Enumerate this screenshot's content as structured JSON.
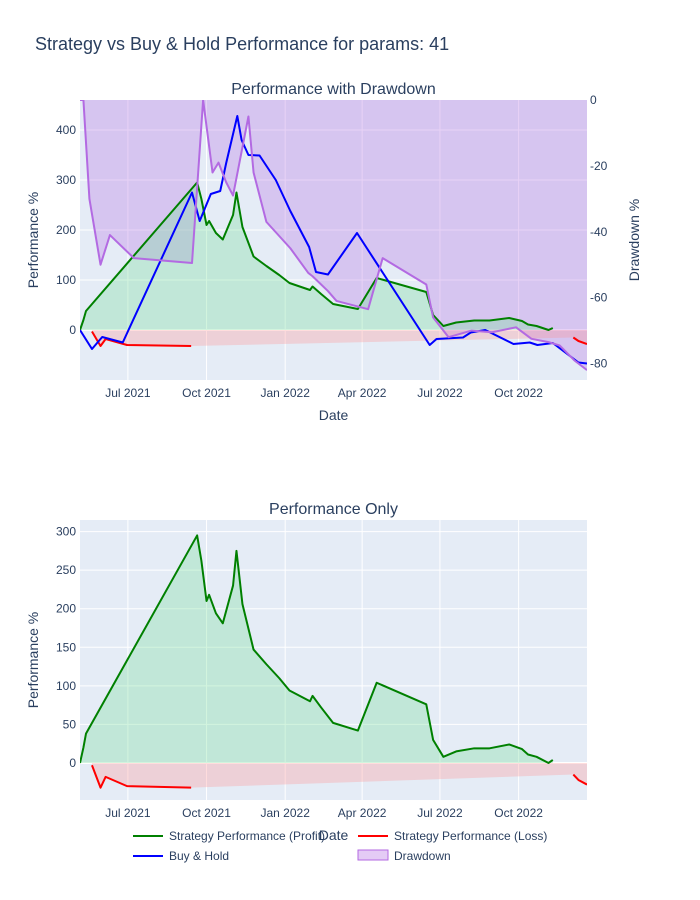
{
  "title": "Strategy vs Buy & Hold Performance for params: 41",
  "colors": {
    "profit": "#008000",
    "loss": "#ff0000",
    "buyhold": "#0000ff",
    "drawdown": "#b36ae2",
    "plot_bg": "#e5ecf6",
    "grid": "#ffffff",
    "text": "#2a3f5f"
  },
  "chart_data": [
    {
      "type": "line",
      "title": "Performance with Drawdown",
      "xlabel": "Date",
      "ylabel": "Performance %",
      "y2label": "Drawdown %",
      "x_ticks": [
        "Jul 2021",
        "Oct 2021",
        "Jan 2022",
        "Apr 2022",
        "Jul 2022",
        "Oct 2022"
      ],
      "y_ticks": [
        0,
        100,
        200,
        300,
        400
      ],
      "y2_ticks": [
        0,
        -20,
        -40,
        -60,
        -80
      ],
      "xlim": [
        "2021-05-06",
        "2022-12-20"
      ],
      "ylim": [
        -100,
        460
      ],
      "y2lim": [
        -85,
        0
      ],
      "grid": true,
      "series": [
        {
          "name": "Strategy Performance (Profit)",
          "axis": "y",
          "points": [
            [
              "2021-05-06",
              0
            ],
            [
              "2021-05-10",
              20
            ],
            [
              "2021-05-13",
              38
            ],
            [
              "2021-09-20",
              295
            ],
            [
              "2021-09-25",
              262
            ],
            [
              "2021-10-01",
              210
            ],
            [
              "2021-10-04",
              218
            ],
            [
              "2021-10-12",
              194
            ],
            [
              "2021-10-20",
              181
            ],
            [
              "2021-11-01",
              230
            ],
            [
              "2021-11-05",
              275
            ],
            [
              "2021-11-12",
              206
            ],
            [
              "2021-11-25",
              147
            ],
            [
              "2021-12-10",
              128
            ],
            [
              "2021-12-25",
              110
            ],
            [
              "2022-01-06",
              94
            ],
            [
              "2022-01-30",
              80
            ],
            [
              "2022-02-02",
              87
            ],
            [
              "2022-02-12",
              72
            ],
            [
              "2022-02-26",
              52
            ],
            [
              "2022-03-27",
              42
            ],
            [
              "2022-04-18",
              104
            ],
            [
              "2022-06-15",
              76
            ],
            [
              "2022-06-23",
              30
            ],
            [
              "2022-07-05",
              8
            ],
            [
              "2022-07-20",
              15
            ],
            [
              "2022-08-10",
              19
            ],
            [
              "2022-08-28",
              19
            ],
            [
              "2022-09-20",
              24
            ],
            [
              "2022-10-05",
              18
            ],
            [
              "2022-10-12",
              11
            ],
            [
              "2022-10-22",
              8
            ],
            [
              "2022-11-05",
              0
            ],
            [
              "2022-11-10",
              4
            ]
          ]
        },
        {
          "name": "Strategy Performance (Loss)",
          "axis": "y",
          "points": [
            [
              "2021-05-20",
              -3
            ],
            [
              "2021-05-30",
              -32
            ],
            [
              "2021-06-05",
              -18
            ],
            [
              "2021-06-30",
              -30
            ],
            [
              "2021-09-13",
              -32
            ],
            [
              "2022-12-04",
              -15
            ],
            [
              "2022-12-10",
              -22
            ],
            [
              "2022-12-20",
              -28
            ]
          ]
        },
        {
          "name": "Buy & Hold",
          "axis": "y",
          "points": [
            [
              "2021-05-06",
              0
            ],
            [
              "2021-05-20",
              -38
            ],
            [
              "2021-06-01",
              -14
            ],
            [
              "2021-06-25",
              -25
            ],
            [
              "2021-09-14",
              275
            ],
            [
              "2021-09-23",
              218
            ],
            [
              "2021-10-06",
              272
            ],
            [
              "2021-10-17",
              278
            ],
            [
              "2021-10-24",
              334
            ],
            [
              "2021-11-06",
              428
            ],
            [
              "2021-11-11",
              380
            ],
            [
              "2021-11-19",
              350
            ],
            [
              "2021-12-02",
              349
            ],
            [
              "2021-12-21",
              300
            ],
            [
              "2022-01-07",
              238
            ],
            [
              "2022-01-29",
              166
            ],
            [
              "2022-02-06",
              116
            ],
            [
              "2022-02-20",
              111
            ],
            [
              "2022-03-26",
              194
            ],
            [
              "2022-06-19",
              -30
            ],
            [
              "2022-06-27",
              -18
            ],
            [
              "2022-07-28",
              -15
            ],
            [
              "2022-08-06",
              -5
            ],
            [
              "2022-08-23",
              0
            ],
            [
              "2022-09-25",
              -28
            ],
            [
              "2022-10-14",
              -25
            ],
            [
              "2022-10-23",
              -30
            ],
            [
              "2022-11-10",
              -26
            ],
            [
              "2022-12-10",
              -65
            ],
            [
              "2022-12-20",
              -67
            ]
          ]
        },
        {
          "name": "Drawdown",
          "axis": "y2",
          "points": [
            [
              "2021-05-06",
              0
            ],
            [
              "2021-05-10",
              0
            ],
            [
              "2021-05-17",
              -30
            ],
            [
              "2021-05-30",
              -50
            ],
            [
              "2021-06-10",
              -41
            ],
            [
              "2021-07-08",
              -48
            ],
            [
              "2021-09-14",
              -49.5
            ],
            [
              "2021-09-27",
              0
            ],
            [
              "2021-10-08",
              -22
            ],
            [
              "2021-10-15",
              -19
            ],
            [
              "2021-10-24",
              -25
            ],
            [
              "2021-11-01",
              -29
            ],
            [
              "2021-11-19",
              -5
            ],
            [
              "2021-11-25",
              -22
            ],
            [
              "2021-12-10",
              -37
            ],
            [
              "2022-01-07",
              -45
            ],
            [
              "2022-01-28",
              -52.5
            ],
            [
              "2022-02-02",
              -53.5
            ],
            [
              "2022-02-20",
              -58
            ],
            [
              "2022-03-02",
              -61
            ],
            [
              "2022-04-08",
              -63.5
            ],
            [
              "2022-04-25",
              -48
            ],
            [
              "2022-06-15",
              -56
            ],
            [
              "2022-06-23",
              -66
            ],
            [
              "2022-07-11",
              -72
            ],
            [
              "2022-08-07",
              -70
            ],
            [
              "2022-08-31",
              -70.5
            ],
            [
              "2022-09-28",
              -69
            ],
            [
              "2022-10-16",
              -72.5
            ],
            [
              "2022-11-05",
              -73.5
            ],
            [
              "2022-11-18",
              -74.5
            ],
            [
              "2022-12-05",
              -79
            ],
            [
              "2022-12-20",
              -82
            ]
          ]
        }
      ]
    },
    {
      "type": "line",
      "title": "Performance Only",
      "xlabel": "Date",
      "ylabel": "Performance %",
      "x_ticks": [
        "Jul 2021",
        "Oct 2021",
        "Jan 2022",
        "Apr 2022",
        "Jul 2022",
        "Oct 2022"
      ],
      "y_ticks": [
        0,
        50,
        100,
        150,
        200,
        250,
        300
      ],
      "xlim": [
        "2021-05-06",
        "2022-12-20"
      ],
      "ylim": [
        -48,
        315
      ],
      "grid": true,
      "series": [
        {
          "name": "Strategy Performance (Profit)",
          "points": [
            [
              "2021-05-06",
              0
            ],
            [
              "2021-05-10",
              20
            ],
            [
              "2021-05-13",
              38
            ],
            [
              "2021-09-20",
              295
            ],
            [
              "2021-09-25",
              262
            ],
            [
              "2021-10-01",
              210
            ],
            [
              "2021-10-04",
              218
            ],
            [
              "2021-10-12",
              194
            ],
            [
              "2021-10-20",
              181
            ],
            [
              "2021-11-01",
              230
            ],
            [
              "2021-11-05",
              275
            ],
            [
              "2021-11-12",
              206
            ],
            [
              "2021-11-25",
              147
            ],
            [
              "2021-12-10",
              128
            ],
            [
              "2021-12-25",
              110
            ],
            [
              "2022-01-06",
              94
            ],
            [
              "2022-01-30",
              80
            ],
            [
              "2022-02-02",
              87
            ],
            [
              "2022-02-12",
              72
            ],
            [
              "2022-02-26",
              52
            ],
            [
              "2022-03-27",
              42
            ],
            [
              "2022-04-18",
              104
            ],
            [
              "2022-06-15",
              76
            ],
            [
              "2022-06-23",
              30
            ],
            [
              "2022-07-05",
              8
            ],
            [
              "2022-07-20",
              15
            ],
            [
              "2022-08-10",
              19
            ],
            [
              "2022-08-28",
              19
            ],
            [
              "2022-09-20",
              24
            ],
            [
              "2022-10-05",
              18
            ],
            [
              "2022-10-12",
              11
            ],
            [
              "2022-10-22",
              8
            ],
            [
              "2022-11-05",
              0
            ],
            [
              "2022-11-10",
              4
            ]
          ]
        },
        {
          "name": "Strategy Performance (Loss)",
          "points": [
            [
              "2021-05-20",
              -3
            ],
            [
              "2021-05-30",
              -32
            ],
            [
              "2021-06-05",
              -18
            ],
            [
              "2021-06-30",
              -30
            ],
            [
              "2021-09-13",
              -32
            ],
            [
              "2022-12-04",
              -15
            ],
            [
              "2022-12-10",
              -22
            ],
            [
              "2022-12-20",
              -28
            ]
          ]
        }
      ]
    }
  ],
  "legend": {
    "placement": "bottom",
    "items": [
      {
        "name": "Strategy Performance (Profit)",
        "color": "#008000",
        "kind": "line"
      },
      {
        "name": "Strategy Performance (Loss)",
        "color": "#ff0000",
        "kind": "line"
      },
      {
        "name": "Buy & Hold",
        "color": "#0000ff",
        "kind": "line"
      },
      {
        "name": "Drawdown",
        "color": "#b36ae2",
        "kind": "area"
      }
    ]
  }
}
